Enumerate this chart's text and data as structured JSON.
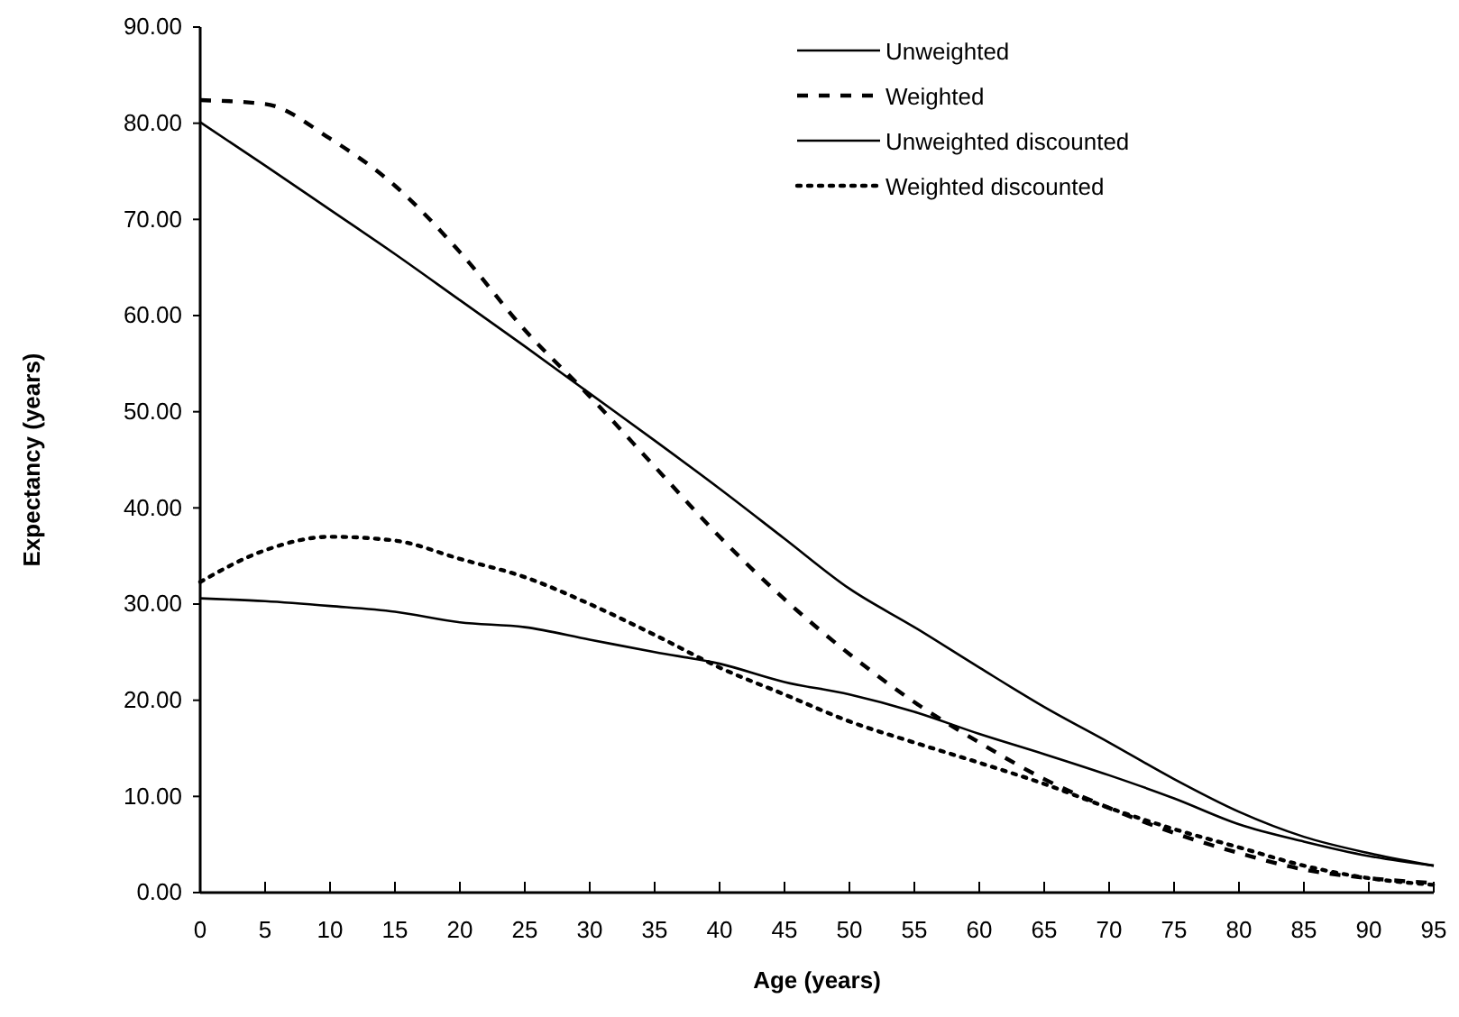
{
  "chart_data": {
    "type": "line",
    "xlabel": "Age (years)",
    "ylabel": "Expectancy (years)",
    "x": [
      0,
      5,
      10,
      15,
      20,
      25,
      30,
      35,
      40,
      45,
      50,
      55,
      60,
      65,
      70,
      75,
      80,
      85,
      90,
      95
    ],
    "xlim": [
      0,
      95
    ],
    "xticks": [
      0,
      5,
      10,
      15,
      20,
      25,
      30,
      35,
      40,
      45,
      50,
      55,
      60,
      65,
      70,
      75,
      80,
      85,
      90,
      95
    ],
    "ylim": [
      0,
      90
    ],
    "yticks": [
      {
        "value": 0,
        "label": "0.00"
      },
      {
        "value": 10,
        "label": "10.00"
      },
      {
        "value": 20,
        "label": "20.00"
      },
      {
        "value": 30,
        "label": "30.00"
      },
      {
        "value": 40,
        "label": "40.00"
      },
      {
        "value": 50,
        "label": "50.00"
      },
      {
        "value": 60,
        "label": "60.00"
      },
      {
        "value": 70,
        "label": "70.00"
      },
      {
        "value": 80,
        "label": "80.00"
      },
      {
        "value": 90,
        "label": "90.00"
      }
    ],
    "legend": "top right",
    "grid": false,
    "series": [
      {
        "name": "Unweighted",
        "color": "#000000",
        "line_style": "solid",
        "values": [
          80.1,
          75.6,
          71,
          66.4,
          61.6,
          56.8,
          51.9,
          47,
          42,
          36.8,
          31.6,
          27.6,
          23.4,
          19.3,
          15.6,
          11.8,
          8.4,
          5.8,
          4.1,
          2.8
        ]
      },
      {
        "name": "Weighted",
        "color": "#000000",
        "line_style": "dashed",
        "values": [
          82.4,
          82,
          78.4,
          73.5,
          66.6,
          58.5,
          51.6,
          44.3,
          37,
          30.5,
          24.8,
          19.8,
          15.6,
          11.8,
          8.8,
          6.2,
          4.1,
          2.4,
          1.5,
          1
        ]
      },
      {
        "name": "Unweighted discounted",
        "color": "#000000",
        "line_style": "solid",
        "values": [
          30.6,
          30.3,
          29.8,
          29.2,
          28.1,
          27.6,
          26.3,
          25,
          23.8,
          21.9,
          20.6,
          18.8,
          16.5,
          14.4,
          12.2,
          9.8,
          7.1,
          5.3,
          3.8,
          2.8
        ]
      },
      {
        "name": "Weighted discounted",
        "color": "#000000",
        "line_style": "dotted",
        "values": [
          32.3,
          35.6,
          37,
          36.6,
          34.7,
          32.8,
          30,
          26.8,
          23.4,
          20.6,
          17.8,
          15.6,
          13.5,
          11.3,
          8.8,
          6.6,
          4.7,
          2.8,
          1.5,
          0.8
        ]
      }
    ]
  }
}
